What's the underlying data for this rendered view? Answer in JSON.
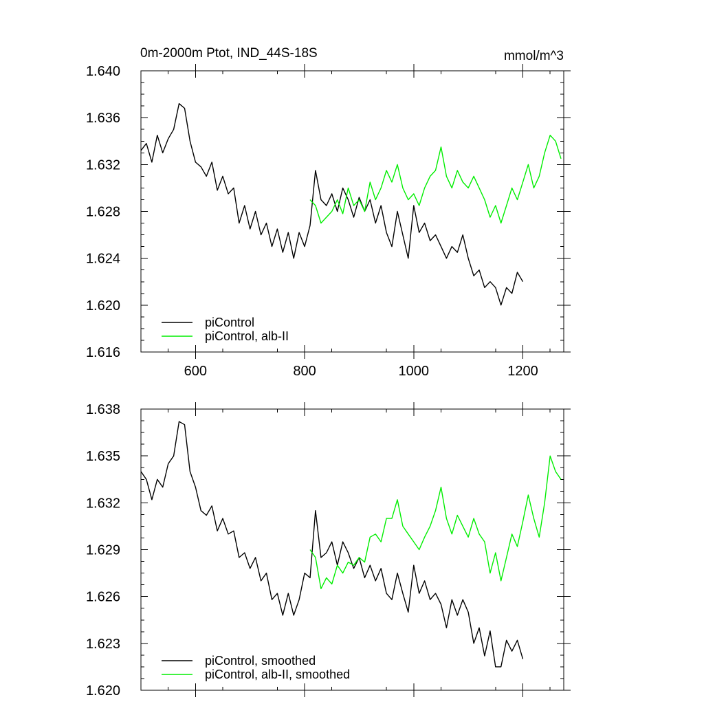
{
  "chart_data": [
    {
      "type": "line",
      "title_left": "0m-2000m Ptot, IND_44S-18S",
      "title_right": "mmol/m^3",
      "xlim": [
        500,
        1275
      ],
      "ylim": [
        1.616,
        1.64
      ],
      "xticks": [
        600,
        800,
        1000,
        1200
      ],
      "xticklabels": [
        "600",
        "800",
        "1000",
        "1200"
      ],
      "yticks": [
        1.616,
        1.62,
        1.624,
        1.628,
        1.632,
        1.636,
        1.64
      ],
      "yticklabels": [
        "1.616",
        "1.620",
        "1.624",
        "1.628",
        "1.632",
        "1.636",
        "1.640"
      ],
      "legend_position": "bottom-left",
      "series": [
        {
          "name": "piControl",
          "color": "#000000",
          "x": [
            500,
            510,
            520,
            530,
            540,
            550,
            560,
            570,
            580,
            590,
            600,
            610,
            620,
            630,
            640,
            650,
            660,
            670,
            680,
            690,
            700,
            710,
            720,
            730,
            740,
            750,
            760,
            770,
            780,
            790,
            800,
            810,
            820,
            830,
            840,
            850,
            860,
            870,
            880,
            890,
            900,
            910,
            920,
            930,
            940,
            950,
            960,
            970,
            980,
            990,
            1000,
            1010,
            1020,
            1030,
            1040,
            1050,
            1060,
            1070,
            1080,
            1090,
            1100,
            1110,
            1120,
            1130,
            1140,
            1150,
            1160,
            1170,
            1180,
            1190,
            1200
          ],
          "y": [
            1.6332,
            1.6338,
            1.6322,
            1.6345,
            1.633,
            1.6342,
            1.635,
            1.6372,
            1.6368,
            1.634,
            1.6322,
            1.6318,
            1.631,
            1.6322,
            1.6298,
            1.631,
            1.6295,
            1.63,
            1.627,
            1.6285,
            1.6265,
            1.628,
            1.626,
            1.627,
            1.625,
            1.6265,
            1.6245,
            1.6262,
            1.624,
            1.6262,
            1.625,
            1.6268,
            1.6315,
            1.629,
            1.6285,
            1.6295,
            1.628,
            1.63,
            1.629,
            1.6275,
            1.6292,
            1.628,
            1.629,
            1.627,
            1.6285,
            1.6262,
            1.625,
            1.628,
            1.626,
            1.624,
            1.6285,
            1.6262,
            1.627,
            1.6255,
            1.626,
            1.625,
            1.624,
            1.625,
            1.6245,
            1.626,
            1.624,
            1.6225,
            1.623,
            1.6215,
            1.622,
            1.6215,
            1.62,
            1.6215,
            1.621,
            1.6228,
            1.622
          ]
        },
        {
          "name": "piControl, alb-II",
          "color": "#00ee00",
          "x": [
            810,
            820,
            830,
            840,
            850,
            860,
            870,
            880,
            890,
            900,
            910,
            920,
            930,
            940,
            950,
            960,
            970,
            980,
            990,
            1000,
            1010,
            1020,
            1030,
            1040,
            1050,
            1060,
            1070,
            1080,
            1090,
            1100,
            1110,
            1120,
            1130,
            1140,
            1150,
            1160,
            1170,
            1180,
            1190,
            1200,
            1210,
            1220,
            1230,
            1240,
            1250,
            1260,
            1270
          ],
          "y": [
            1.629,
            1.6285,
            1.627,
            1.6275,
            1.628,
            1.629,
            1.6278,
            1.63,
            1.6285,
            1.629,
            1.628,
            1.6305,
            1.629,
            1.63,
            1.6315,
            1.6305,
            1.632,
            1.63,
            1.629,
            1.6295,
            1.6285,
            1.63,
            1.631,
            1.6315,
            1.6335,
            1.631,
            1.63,
            1.6315,
            1.6305,
            1.63,
            1.631,
            1.63,
            1.629,
            1.6275,
            1.6285,
            1.627,
            1.6285,
            1.63,
            1.629,
            1.6305,
            1.632,
            1.63,
            1.631,
            1.633,
            1.6345,
            1.634,
            1.6325
          ]
        }
      ]
    },
    {
      "type": "line",
      "xlim": [
        500,
        1275
      ],
      "ylim": [
        1.62,
        1.638
      ],
      "xticks": [
        600,
        800,
        1000,
        1200
      ],
      "yticks": [
        1.62,
        1.623,
        1.626,
        1.629,
        1.632,
        1.635,
        1.638
      ],
      "yticklabels": [
        "1.620",
        "1.623",
        "1.626",
        "1.629",
        "1.632",
        "1.635",
        "1.638"
      ],
      "legend_position": "bottom-left",
      "series": [
        {
          "name": "piControl, smoothed",
          "color": "#000000",
          "x": [
            500,
            510,
            520,
            530,
            540,
            550,
            560,
            570,
            580,
            590,
            600,
            610,
            620,
            630,
            640,
            650,
            660,
            670,
            680,
            690,
            700,
            710,
            720,
            730,
            740,
            750,
            760,
            770,
            780,
            790,
            800,
            810,
            820,
            830,
            840,
            850,
            860,
            870,
            880,
            890,
            900,
            910,
            920,
            930,
            940,
            950,
            960,
            970,
            980,
            990,
            1000,
            1010,
            1020,
            1030,
            1040,
            1050,
            1060,
            1070,
            1080,
            1090,
            1100,
            1110,
            1120,
            1130,
            1140,
            1150,
            1160,
            1170,
            1180,
            1190,
            1200
          ],
          "y": [
            1.634,
            1.6335,
            1.6322,
            1.6335,
            1.633,
            1.6345,
            1.635,
            1.6372,
            1.637,
            1.634,
            1.633,
            1.6315,
            1.6312,
            1.6318,
            1.6302,
            1.631,
            1.63,
            1.6302,
            1.6285,
            1.6288,
            1.6278,
            1.6285,
            1.627,
            1.6275,
            1.6258,
            1.6262,
            1.6248,
            1.6262,
            1.6248,
            1.6258,
            1.6275,
            1.6272,
            1.6315,
            1.6285,
            1.6288,
            1.6295,
            1.628,
            1.6295,
            1.6288,
            1.6278,
            1.6285,
            1.6272,
            1.628,
            1.627,
            1.6278,
            1.6262,
            1.6258,
            1.6275,
            1.6262,
            1.625,
            1.628,
            1.6262,
            1.627,
            1.6258,
            1.6262,
            1.6255,
            1.624,
            1.6258,
            1.6248,
            1.6258,
            1.625,
            1.623,
            1.624,
            1.6222,
            1.6238,
            1.6215,
            1.6215,
            1.6232,
            1.6225,
            1.6232,
            1.622
          ]
        },
        {
          "name": "piControl, alb-II, smoothed",
          "color": "#00ee00",
          "x": [
            810,
            820,
            830,
            840,
            850,
            860,
            870,
            880,
            890,
            900,
            910,
            920,
            930,
            940,
            950,
            960,
            970,
            980,
            990,
            1000,
            1010,
            1020,
            1030,
            1040,
            1050,
            1060,
            1070,
            1080,
            1090,
            1100,
            1110,
            1120,
            1130,
            1140,
            1150,
            1160,
            1170,
            1180,
            1190,
            1200,
            1210,
            1220,
            1230,
            1240,
            1250,
            1260,
            1270
          ],
          "y": [
            1.629,
            1.6285,
            1.6265,
            1.6272,
            1.6268,
            1.628,
            1.6275,
            1.6282,
            1.628,
            1.6285,
            1.6282,
            1.6298,
            1.63,
            1.6295,
            1.631,
            1.631,
            1.6322,
            1.6305,
            1.63,
            1.6295,
            1.629,
            1.6298,
            1.6305,
            1.6315,
            1.633,
            1.631,
            1.63,
            1.6312,
            1.6305,
            1.6298,
            1.631,
            1.63,
            1.6295,
            1.6275,
            1.6288,
            1.627,
            1.6285,
            1.63,
            1.6292,
            1.6308,
            1.6325,
            1.631,
            1.6298,
            1.632,
            1.635,
            1.634,
            1.6335
          ]
        }
      ]
    }
  ]
}
